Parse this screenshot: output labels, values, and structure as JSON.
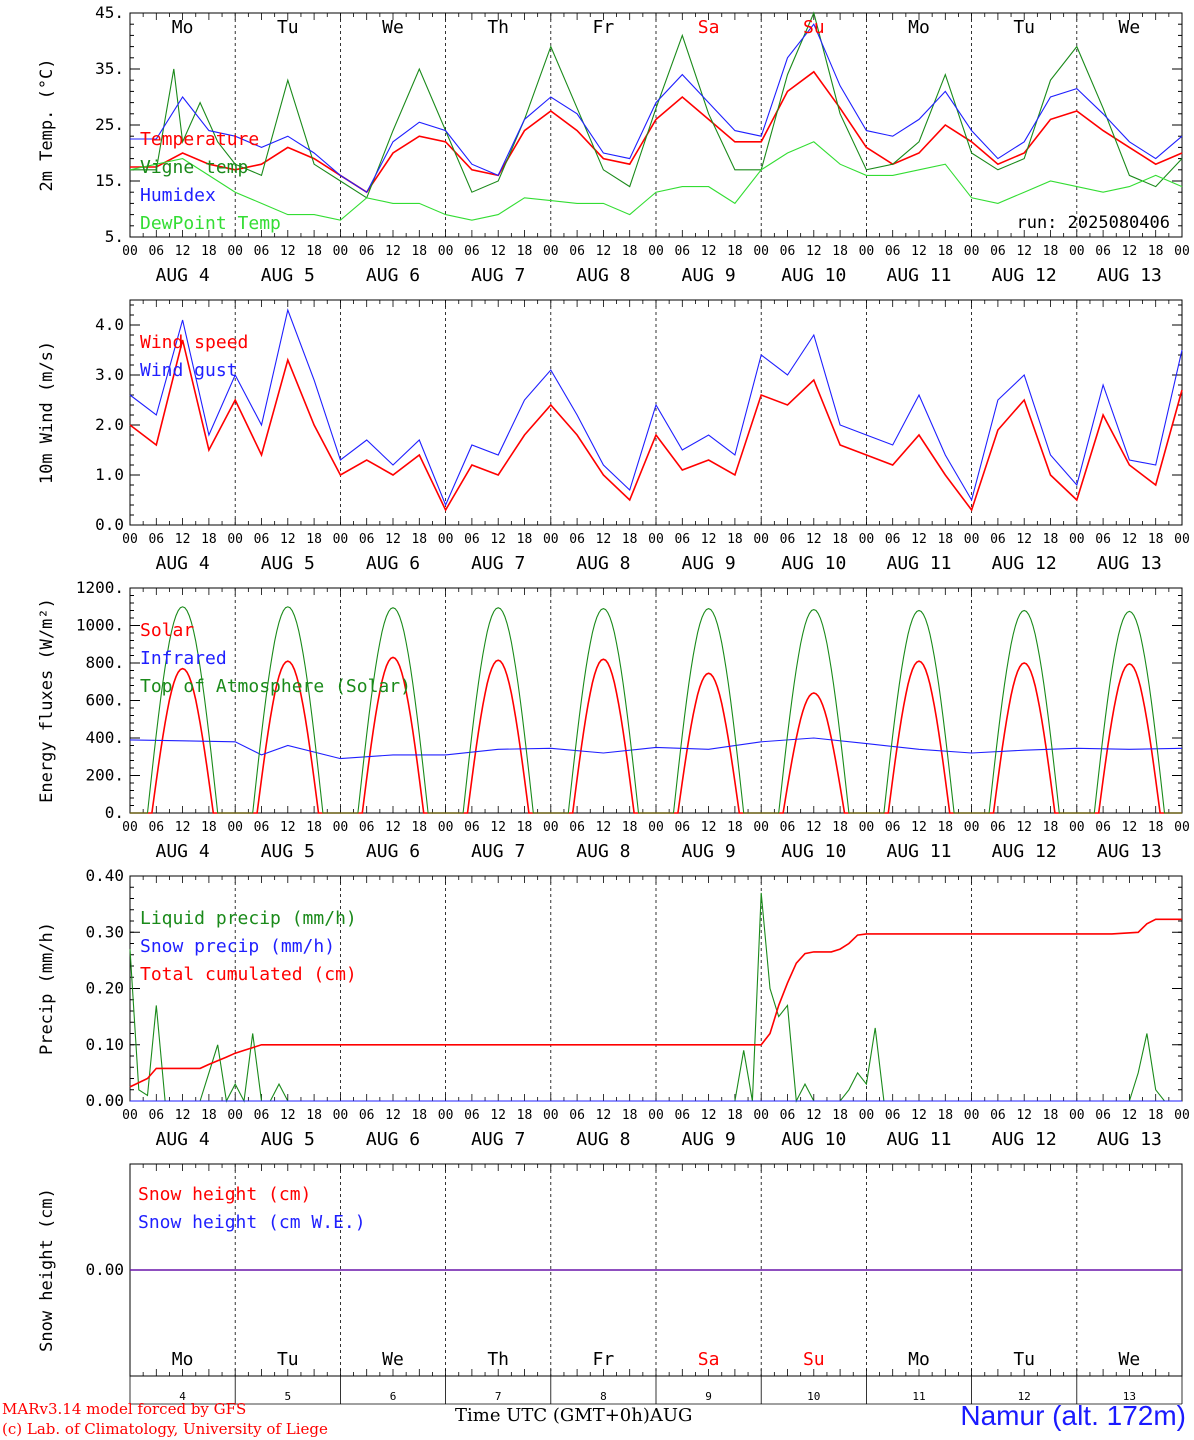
{
  "colors": {
    "red": "#ff0000",
    "green": "#1a8a1a",
    "blue": "#1f1fff",
    "lightgreen": "#33dd33",
    "black": "#000000"
  },
  "header": {
    "weekdays": [
      "Mo",
      "Tu",
      "We",
      "Th",
      "Fr",
      "Sa",
      "Su",
      "Mo",
      "Tu",
      "We"
    ],
    "weekend_indices": [
      5,
      6
    ]
  },
  "footer": {
    "credit_line1": "MARv3.14 model forced by GFS",
    "credit_line2": "(c) Lab. of Climatology, University of Liege",
    "xlabel": "Time UTC (GMT+0h)AUG",
    "station": "Namur (alt. 172m)",
    "bottom_day_numbers": [
      "4",
      "5",
      "6",
      "7",
      "8",
      "9",
      "10",
      "11",
      "12",
      "13"
    ]
  },
  "x_axis": {
    "hour_ticks": [
      "00",
      "06",
      "12",
      "18"
    ],
    "final_tick": "00",
    "date_labels": [
      "AUG  4",
      "AUG  5",
      "AUG  6",
      "AUG  7",
      "AUG  8",
      "AUG  9",
      "AUG 10",
      "AUG 11",
      "AUG 12",
      "AUG 13"
    ]
  },
  "chart_data": [
    {
      "type": "line",
      "ylabel": "2m Temp. (°C)",
      "ylim": [
        5,
        45
      ],
      "ytick_labels": [
        "5.",
        "15.",
        "25.",
        "35.",
        "45."
      ],
      "annotation": "run: 2025080406",
      "x_unit": "hours from AUG 4 00 UTC",
      "series": [
        {
          "name": "Temperature",
          "color": "#ff0000",
          "x": [
            0,
            6,
            12,
            18,
            24,
            30,
            36,
            42,
            48,
            54,
            60,
            66,
            72,
            78,
            84,
            90,
            96,
            102,
            108,
            114,
            120,
            126,
            132,
            138,
            144,
            150,
            156,
            162,
            168,
            174,
            180,
            186,
            192,
            198,
            204,
            210,
            216,
            222,
            228,
            234,
            240
          ],
          "values": [
            17.5,
            17.5,
            20,
            18,
            17,
            18,
            21,
            19,
            16,
            13,
            20,
            23,
            22,
            17,
            16,
            24,
            27.5,
            24,
            19,
            18,
            26,
            30,
            26,
            22,
            22,
            31,
            34.5,
            28,
            21,
            18,
            20,
            25,
            22,
            18,
            20,
            26,
            27.5,
            24,
            21,
            18,
            20
          ]
        },
        {
          "name": "Vigne temp",
          "color": "#1a8a1a",
          "x": [
            0,
            6,
            10,
            12,
            16,
            20,
            24,
            30,
            36,
            42,
            48,
            54,
            60,
            66,
            72,
            78,
            84,
            90,
            96,
            102,
            108,
            114,
            120,
            126,
            132,
            138,
            144,
            150,
            156,
            162,
            168,
            174,
            180,
            186,
            192,
            198,
            204,
            210,
            216,
            222,
            228,
            234,
            240
          ],
          "values": [
            17,
            17,
            35,
            22,
            29,
            22,
            18,
            16,
            33,
            18,
            15,
            12,
            24,
            35,
            24,
            13,
            15,
            26,
            39,
            28,
            17,
            14,
            28,
            41,
            27,
            17,
            17,
            34,
            45,
            27,
            17,
            18,
            22,
            34,
            20,
            17,
            19,
            33,
            39,
            28,
            16,
            14,
            19
          ]
        },
        {
          "name": "Humidex",
          "color": "#1f1fff",
          "x": [
            0,
            6,
            12,
            18,
            24,
            30,
            36,
            42,
            48,
            54,
            60,
            66,
            72,
            78,
            84,
            90,
            96,
            102,
            108,
            114,
            120,
            126,
            132,
            138,
            144,
            150,
            156,
            162,
            168,
            174,
            180,
            186,
            192,
            198,
            204,
            210,
            216,
            222,
            228,
            234,
            240
          ],
          "values": [
            22.5,
            22.5,
            30,
            24,
            23,
            21,
            23,
            20,
            16,
            13,
            22,
            25.5,
            24,
            18,
            16,
            26,
            30,
            27,
            20,
            19,
            29,
            34,
            29,
            24,
            23,
            37,
            43,
            32,
            24,
            23,
            26,
            31,
            24,
            19,
            22,
            30,
            31.5,
            27,
            22,
            19,
            23
          ]
        },
        {
          "name": "DewPoint Temp",
          "color": "#33dd33",
          "x": [
            0,
            6,
            12,
            18,
            24,
            30,
            36,
            42,
            48,
            54,
            60,
            66,
            72,
            78,
            84,
            90,
            96,
            102,
            108,
            114,
            120,
            126,
            132,
            138,
            144,
            150,
            156,
            162,
            168,
            174,
            180,
            186,
            192,
            198,
            204,
            210,
            216,
            222,
            228,
            234,
            240
          ],
          "values": [
            17,
            18,
            19,
            16,
            13,
            11,
            9,
            9,
            8,
            12,
            11,
            11,
            9,
            8,
            9,
            12,
            11.5,
            11,
            11,
            9,
            13,
            14,
            14,
            11,
            17,
            20,
            22,
            18,
            16,
            16,
            17,
            18,
            12,
            11,
            13,
            15,
            14,
            13,
            14,
            16,
            14
          ]
        }
      ]
    },
    {
      "type": "line",
      "ylabel": "10m Wind (m/s)",
      "ylim": [
        0,
        4.5
      ],
      "ytick_labels": [
        "0.0",
        "1.0",
        "2.0",
        "3.0",
        "4.0"
      ],
      "series": [
        {
          "name": "Wind speed",
          "color": "#ff0000",
          "x": [
            0,
            6,
            12,
            18,
            24,
            30,
            36,
            42,
            48,
            54,
            60,
            66,
            72,
            78,
            84,
            90,
            96,
            102,
            108,
            114,
            120,
            126,
            132,
            138,
            144,
            150,
            156,
            162,
            168,
            174,
            180,
            186,
            192,
            198,
            204,
            210,
            216,
            222,
            228,
            234,
            240
          ],
          "values": [
            2,
            1.6,
            3.7,
            1.5,
            2.5,
            1.4,
            3.3,
            2,
            1,
            1.3,
            1,
            1.4,
            0.3,
            1.2,
            1,
            1.8,
            2.4,
            1.8,
            1,
            0.5,
            1.8,
            1.1,
            1.3,
            1,
            2.6,
            2.4,
            2.9,
            1.6,
            1.4,
            1.2,
            1.8,
            1,
            0.3,
            1.9,
            2.5,
            1,
            0.5,
            2.2,
            1.2,
            0.8,
            2.7
          ]
        },
        {
          "name": "Wind gust",
          "color": "#1f1fff",
          "x": [
            0,
            6,
            12,
            18,
            24,
            30,
            36,
            42,
            48,
            54,
            60,
            66,
            72,
            78,
            84,
            90,
            96,
            102,
            108,
            114,
            120,
            126,
            132,
            138,
            144,
            150,
            156,
            162,
            168,
            174,
            180,
            186,
            192,
            198,
            204,
            210,
            216,
            222,
            228,
            234,
            240
          ],
          "values": [
            2.6,
            2.2,
            4.1,
            1.8,
            3,
            2,
            4.3,
            2.9,
            1.3,
            1.7,
            1.2,
            1.7,
            0.4,
            1.6,
            1.4,
            2.5,
            3.1,
            2.2,
            1.2,
            0.7,
            2.4,
            1.5,
            1.8,
            1.4,
            3.4,
            3,
            3.8,
            2,
            1.8,
            1.6,
            2.6,
            1.4,
            0.5,
            2.5,
            3,
            1.4,
            0.8,
            2.8,
            1.3,
            1.2,
            3.5
          ]
        }
      ]
    },
    {
      "type": "line",
      "ylabel": "Energy fluxes (W/m²)",
      "ylim": [
        0,
        1200
      ],
      "ytick_labels": [
        "0.",
        "200.",
        "400.",
        "600.",
        "800.",
        "1000.",
        "1200."
      ],
      "series": [
        {
          "name": "Solar",
          "color": "#ff0000",
          "daily_peaks": [
            770,
            810,
            830,
            815,
            820,
            745,
            640,
            810,
            800,
            795
          ]
        },
        {
          "name": "Infrared",
          "color": "#1f1fff",
          "x": [
            0,
            12,
            24,
            30,
            36,
            48,
            60,
            72,
            84,
            96,
            108,
            120,
            132,
            144,
            156,
            168,
            180,
            192,
            204,
            216,
            228,
            240
          ],
          "values": [
            390,
            385,
            380,
            310,
            360,
            290,
            310,
            310,
            340,
            345,
            320,
            350,
            340,
            380,
            400,
            370,
            340,
            320,
            335,
            345,
            340,
            345
          ]
        },
        {
          "name": "Top of Atmosphere (Solar)",
          "color": "#1a8a1a",
          "daily_peaks": [
            1100,
            1100,
            1095,
            1095,
            1090,
            1090,
            1085,
            1080,
            1080,
            1075
          ]
        }
      ]
    },
    {
      "type": "line",
      "ylabel": "Precip (mm/h)",
      "ylim": [
        0,
        0.4
      ],
      "ytick_labels": [
        "0.00",
        "0.10",
        "0.20",
        "0.30",
        "0.40"
      ],
      "series": [
        {
          "name": "Liquid precip (mm/h)",
          "color": "#1a8a1a",
          "x": [
            0,
            2,
            4,
            6,
            8,
            10,
            12,
            14,
            16,
            18,
            20,
            22,
            24,
            26,
            28,
            30,
            32,
            34,
            36,
            40,
            138,
            140,
            142,
            144,
            146,
            148,
            150,
            152,
            154,
            156,
            162,
            164,
            166,
            168,
            170,
            172,
            176,
            210,
            212,
            214,
            216,
            218,
            220,
            222,
            224,
            226,
            228,
            230,
            232,
            234,
            236,
            238,
            240
          ],
          "values": [
            0.27,
            0.02,
            0.01,
            0.17,
            0,
            0,
            0,
            0,
            0,
            0.05,
            0.1,
            0,
            0.03,
            0,
            0.12,
            0,
            0,
            0.03,
            0,
            0,
            0,
            0.09,
            0,
            0.37,
            0.2,
            0.15,
            0.17,
            0,
            0.03,
            0,
            0,
            0.02,
            0.05,
            0.03,
            0.13,
            0,
            0,
            0,
            0,
            0,
            0,
            0,
            0,
            0,
            0,
            0,
            0,
            0.05,
            0.12,
            0.02,
            0,
            0,
            0
          ]
        },
        {
          "name": "Snow precip (mm/h)",
          "color": "#1f1fff",
          "x": [
            0,
            240
          ],
          "values": [
            0,
            0
          ]
        },
        {
          "name": "Total cumulated (cm)",
          "color": "#ff0000",
          "x": [
            0,
            4,
            6,
            16,
            18,
            22,
            24,
            26,
            28,
            30,
            144,
            146,
            148,
            150,
            152,
            154,
            156,
            160,
            162,
            164,
            166,
            168,
            180,
            184,
            186,
            200,
            224,
            230,
            232,
            234,
            240
          ],
          "values": [
            0.025,
            0.04,
            0.058,
            0.058,
            0.065,
            0.078,
            0.085,
            0.09,
            0.095,
            0.1,
            0.1,
            0.12,
            0.17,
            0.21,
            0.245,
            0.262,
            0.265,
            0.265,
            0.27,
            0.28,
            0.295,
            0.297,
            0.297,
            0.297,
            0.297,
            0.297,
            0.297,
            0.3,
            0.315,
            0.323,
            0.323
          ]
        }
      ]
    },
    {
      "type": "line",
      "ylabel": "Snow height (cm)",
      "ytick_labels": [
        "0.00"
      ],
      "series": [
        {
          "name": "Snow height (cm)",
          "color": "#ff0000",
          "x": [
            0,
            240
          ],
          "values": [
            0,
            0
          ]
        },
        {
          "name": "Snow height (cm W.E.)",
          "color": "#1f1fff",
          "x": [
            0,
            240
          ],
          "values": [
            0,
            0
          ]
        }
      ]
    }
  ]
}
